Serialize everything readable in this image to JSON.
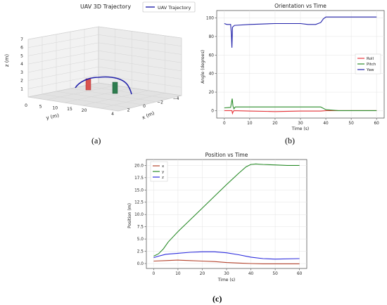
{
  "panels": {
    "a": {
      "caption": "(a)",
      "chart_data": {
        "type": "line3d",
        "title": "UAV 3D Trajectory",
        "legend": [
          "UAV Trajectory"
        ],
        "axes": {
          "x": {
            "label": "x (m)",
            "ticks": [
              "4",
              "2",
              "0",
              "−2",
              "−4"
            ]
          },
          "y": {
            "label": "y (m)",
            "ticks": [
              "0",
              "5",
              "10",
              "15",
              "20"
            ]
          },
          "z": {
            "label": "z (m)",
            "ticks": [
              "1",
              "2",
              "3",
              "4",
              "5",
              "6",
              "7"
            ]
          }
        },
        "colors": {
          "trajectory": "#2222aa",
          "obstacle_1": "#d9534f",
          "obstacle_2": "#2e7d4f"
        }
      }
    },
    "b": {
      "caption": "(b)",
      "chart_data": {
        "type": "line",
        "title": "Orientation vs Time",
        "xlabel": "Time (s)",
        "ylabel": "Angle (degrees)",
        "xlim": [
          -3,
          63
        ],
        "ylim": [
          -8,
          108
        ],
        "xticks": [
          0,
          10,
          20,
          30,
          40,
          50,
          60
        ],
        "yticks": [
          0,
          20,
          40,
          60,
          80,
          100
        ],
        "legend_position": "right",
        "series": [
          {
            "name": "Roll",
            "color": "#e8353b",
            "points": [
              [
                0,
                0
              ],
              [
                3,
                0
              ],
              [
                3.2,
                -3
              ],
              [
                3.5,
                -1
              ],
              [
                3.8,
                0
              ],
              [
                10,
                -0.5
              ],
              [
                20,
                -1
              ],
              [
                30,
                -0.5
              ],
              [
                38,
                -0.5
              ],
              [
                40,
                0
              ],
              [
                45,
                0
              ],
              [
                60,
                0
              ]
            ]
          },
          {
            "name": "Pitch",
            "color": "#2a8c2a",
            "points": [
              [
                0,
                3
              ],
              [
                2.5,
                3.5
              ],
              [
                3.1,
                13
              ],
              [
                3.4,
                5
              ],
              [
                3.8,
                2
              ],
              [
                4.3,
                4
              ],
              [
                10,
                4
              ],
              [
                20,
                4
              ],
              [
                30,
                4
              ],
              [
                38,
                4
              ],
              [
                40,
                1
              ],
              [
                45,
                0
              ],
              [
                60,
                0
              ]
            ]
          },
          {
            "name": "Yaw",
            "color": "#2222aa",
            "points": [
              [
                0,
                94
              ],
              [
                1,
                93
              ],
              [
                2.5,
                93
              ],
              [
                2.8,
                82
              ],
              [
                3,
                68
              ],
              [
                3.2,
                90
              ],
              [
                4,
                92
              ],
              [
                10,
                93
              ],
              [
                20,
                94
              ],
              [
                30,
                94
              ],
              [
                33,
                93
              ],
              [
                36,
                93
              ],
              [
                38,
                95
              ],
              [
                39,
                99
              ],
              [
                40,
                101
              ],
              [
                45,
                101
              ],
              [
                60,
                101
              ]
            ]
          }
        ]
      }
    },
    "c": {
      "caption": "(c)",
      "chart_data": {
        "type": "line",
        "title": "Position vs Time",
        "xlabel": "Time (s)",
        "ylabel": "Position (m)",
        "xlim": [
          -3,
          63
        ],
        "ylim": [
          -1,
          21.2
        ],
        "xticks": [
          0,
          10,
          20,
          30,
          40,
          50,
          60
        ],
        "yticks": [
          "0.0",
          "2.5",
          "5.0",
          "7.5",
          "10.0",
          "12.5",
          "15.0",
          "17.5",
          "20.0"
        ],
        "legend_position": "top-left",
        "series": [
          {
            "name": "x",
            "color": "#b5452f",
            "points": [
              [
                0,
                0.5
              ],
              [
                5,
                0.6
              ],
              [
                10,
                0.7
              ],
              [
                15,
                0.6
              ],
              [
                20,
                0.5
              ],
              [
                25,
                0.4
              ],
              [
                30,
                0.2
              ],
              [
                35,
                0.1
              ],
              [
                40,
                0.0
              ],
              [
                45,
                -0.05
              ],
              [
                50,
                -0.05
              ],
              [
                60,
                -0.05
              ]
            ]
          },
          {
            "name": "y",
            "color": "#2a8c2a",
            "points": [
              [
                0,
                1.5
              ],
              [
                2,
                2
              ],
              [
                4,
                3
              ],
              [
                6,
                4.4
              ],
              [
                10,
                6.5
              ],
              [
                15,
                8.9
              ],
              [
                20,
                11.3
              ],
              [
                25,
                13.7
              ],
              [
                30,
                16.1
              ],
              [
                35,
                18.4
              ],
              [
                38,
                19.7
              ],
              [
                40,
                20.2
              ],
              [
                42,
                20.3
              ],
              [
                45,
                20.2
              ],
              [
                50,
                20.1
              ],
              [
                55,
                20.0
              ],
              [
                60,
                20.0
              ]
            ]
          },
          {
            "name": "z",
            "color": "#2b2bdd",
            "points": [
              [
                0,
                1.2
              ],
              [
                2,
                1.5
              ],
              [
                5,
                1.9
              ],
              [
                10,
                2.1
              ],
              [
                15,
                2.3
              ],
              [
                20,
                2.4
              ],
              [
                25,
                2.4
              ],
              [
                30,
                2.2
              ],
              [
                35,
                1.8
              ],
              [
                40,
                1.3
              ],
              [
                45,
                1.0
              ],
              [
                50,
                0.9
              ],
              [
                60,
                1.0
              ]
            ]
          }
        ]
      }
    }
  }
}
